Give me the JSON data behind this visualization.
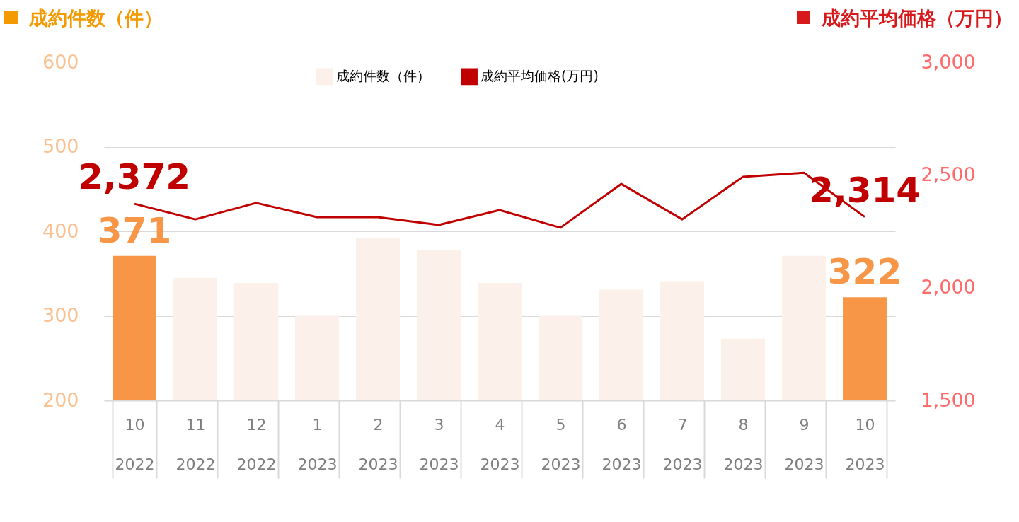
{
  "chart_data": {
    "type": "bar",
    "ylabel": "成約件数（件）",
    "y2label": "成約平均価格（万円）",
    "categories": [
      "10\n2022",
      "11\n2022",
      "12\n2022",
      "1\n2023",
      "2\n2023",
      "3\n2023",
      "4\n2023",
      "5\n2023",
      "6\n2023",
      "7\n2023",
      "8\n2023",
      "9\n2023",
      "10\n2023"
    ],
    "series": [
      {
        "name": "成約件数（件）",
        "color": "#fcf1ea",
        "colors": [
          "#f79646",
          "#fcf1ea",
          "#fcf1ea",
          "#fcf1ea",
          "#fcf1ea",
          "#fcf1ea",
          "#fcf1ea",
          "#fcf1ea",
          "#fcf1ea",
          "#fcf1ea",
          "#fcf1ea",
          "#fcf1ea",
          "#f79646"
        ],
        "values": [
          371,
          345,
          339,
          300,
          392,
          378,
          339,
          300,
          331,
          341,
          273,
          371,
          322
        ],
        "value_labels": [
          "371",
          null,
          null,
          null,
          null,
          null,
          null,
          null,
          null,
          null,
          null,
          null,
          "322"
        ]
      },
      {
        "name": "成約平均価格(万円)",
        "type": "line",
        "axis": "y2",
        "color": "#c00000",
        "values": [
          2372,
          2303,
          2376,
          2313,
          2313,
          2278,
          2344,
          2266,
          2460,
          2303,
          2492,
          2510,
          2314
        ],
        "value_labels": [
          "2,372",
          null,
          null,
          null,
          null,
          null,
          null,
          null,
          null,
          null,
          null,
          null,
          "2,314"
        ]
      }
    ],
    "ylim": [
      200,
      600
    ],
    "yticks": [
      200,
      300,
      400,
      500,
      600
    ],
    "y2lim": [
      1500,
      3000
    ],
    "y2ticks": [
      {
        "value": 1500,
        "label": "1,500"
      },
      {
        "value": 2000,
        "label": "2,000"
      },
      {
        "value": 2500,
        "label": "2,500"
      },
      {
        "value": 3000,
        "label": "3,000"
      }
    ],
    "grid": "y",
    "legend": "top"
  }
}
